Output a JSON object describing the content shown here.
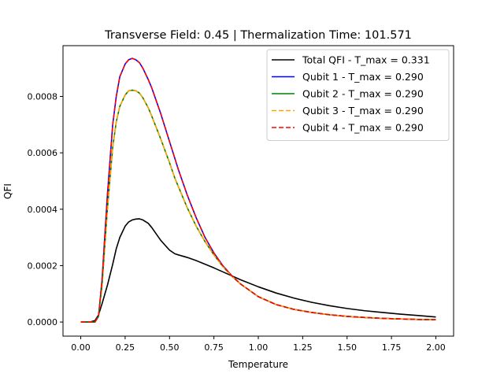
{
  "chart_data": {
    "type": "line",
    "title": "Transverse Field: 0.45 | Thermalization Time: 101.571",
    "xlabel": "Temperature",
    "ylabel": "QFI",
    "xlim": [
      -0.1,
      2.1
    ],
    "ylim": [
      -5e-05,
      0.00098
    ],
    "xticks": [
      0.0,
      0.25,
      0.5,
      0.75,
      1.0,
      1.25,
      1.5,
      1.75,
      2.0
    ],
    "xtick_labels": [
      "0.00",
      "0.25",
      "0.50",
      "0.75",
      "1.00",
      "1.25",
      "1.50",
      "1.75",
      "2.00"
    ],
    "yticks": [
      0.0,
      0.0002,
      0.0004,
      0.0006,
      0.0008
    ],
    "ytick_labels": [
      "0.0000",
      "0.0002",
      "0.0004",
      "0.0006",
      "0.0008"
    ],
    "grid": false,
    "legend_position": "top-right",
    "x": [
      0.0,
      0.05,
      0.08,
      0.1,
      0.12,
      0.15,
      0.18,
      0.2,
      0.22,
      0.25,
      0.27,
      0.29,
      0.31,
      0.33,
      0.35,
      0.38,
      0.4,
      0.45,
      0.5,
      0.53,
      0.55,
      0.6,
      0.65,
      0.7,
      0.75,
      0.8,
      0.85,
      0.9,
      1.0,
      1.1,
      1.2,
      1.3,
      1.4,
      1.5,
      1.6,
      1.7,
      1.8,
      1.9,
      2.0
    ],
    "series": [
      {
        "name": "Total QFI - T_max = 0.331",
        "color": "#000000",
        "dash": "solid",
        "values": [
          0.0,
          0.0,
          5e-06,
          2.5e-05,
          6.5e-05,
          0.00013,
          0.000205,
          0.00026,
          0.0003,
          0.00034,
          0.000355,
          0.000362,
          0.000365,
          0.000366,
          0.000362,
          0.00035,
          0.000335,
          0.00029,
          0.000255,
          0.000242,
          0.000238,
          0.000229,
          0.000218,
          0.000205,
          0.000192,
          0.000178,
          0.000164,
          0.00015,
          0.000125,
          0.000103,
          8.5e-05,
          7e-05,
          5.8e-05,
          4.8e-05,
          4e-05,
          3.4e-05,
          2.8e-05,
          2.3e-05,
          1.8e-05
        ]
      },
      {
        "name": "Qubit 1 - T_max = 0.290",
        "color": "#0000ff",
        "dash": "solid",
        "values": [
          0.0,
          0.0,
          0.0,
          2e-05,
          0.00015,
          0.00045,
          0.0007,
          0.0008,
          0.00087,
          0.000915,
          0.00093,
          0.000935,
          0.00093,
          0.00092,
          0.0009,
          0.00086,
          0.00083,
          0.00074,
          0.00064,
          0.00058,
          0.00054,
          0.00045,
          0.00037,
          0.0003,
          0.000245,
          0.0002,
          0.000165,
          0.000135,
          9e-05,
          6.2e-05,
          4.5e-05,
          3.4e-05,
          2.6e-05,
          2e-05,
          1.6e-05,
          1.3e-05,
          1.1e-05,
          9e-06,
          8e-06
        ]
      },
      {
        "name": "Qubit 2 - T_max = 0.290",
        "color": "#008000",
        "dash": "solid",
        "values": [
          0.0,
          0.0,
          0.0,
          2e-05,
          0.00013,
          0.0004,
          0.00062,
          0.00071,
          0.000765,
          0.000805,
          0.00082,
          0.000822,
          0.00082,
          0.000812,
          0.000795,
          0.00076,
          0.00073,
          0.00065,
          0.000565,
          0.00051,
          0.00048,
          0.000405,
          0.00034,
          0.000285,
          0.000238,
          0.000197,
          0.000163,
          0.000135,
          9e-05,
          6.2e-05,
          4.5e-05,
          3.4e-05,
          2.6e-05,
          2e-05,
          1.6e-05,
          1.3e-05,
          1.1e-05,
          9e-06,
          8e-06
        ]
      },
      {
        "name": "Qubit 3 - T_max = 0.290",
        "color": "#ffa500",
        "dash": "dashed",
        "values": [
          0.0,
          0.0,
          0.0,
          2e-05,
          0.00013,
          0.0004,
          0.00062,
          0.00071,
          0.000765,
          0.000805,
          0.00082,
          0.000822,
          0.00082,
          0.000812,
          0.000795,
          0.00076,
          0.00073,
          0.00065,
          0.000565,
          0.00051,
          0.00048,
          0.000405,
          0.00034,
          0.000285,
          0.000238,
          0.000197,
          0.000163,
          0.000135,
          9e-05,
          6.2e-05,
          4.5e-05,
          3.4e-05,
          2.6e-05,
          2e-05,
          1.6e-05,
          1.3e-05,
          1.1e-05,
          9e-06,
          8e-06
        ]
      },
      {
        "name": "Qubit 4 - T_max = 0.290",
        "color": "#ff0000",
        "dash": "dashed",
        "values": [
          0.0,
          0.0,
          0.0,
          2e-05,
          0.00015,
          0.00045,
          0.0007,
          0.0008,
          0.00087,
          0.000915,
          0.00093,
          0.000935,
          0.00093,
          0.00092,
          0.0009,
          0.00086,
          0.00083,
          0.00074,
          0.00064,
          0.00058,
          0.00054,
          0.00045,
          0.00037,
          0.0003,
          0.000245,
          0.0002,
          0.000165,
          0.000135,
          9e-05,
          6.2e-05,
          4.5e-05,
          3.4e-05,
          2.6e-05,
          2e-05,
          1.6e-05,
          1.3e-05,
          1.1e-05,
          9e-06,
          8e-06
        ]
      }
    ]
  }
}
